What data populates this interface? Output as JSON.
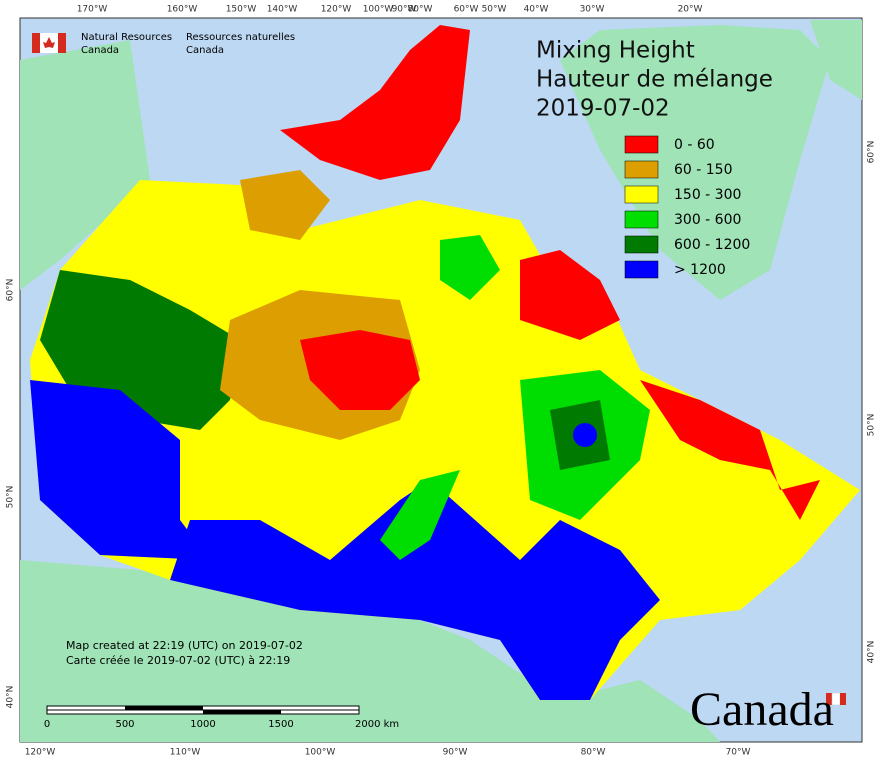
{
  "header": {
    "agency_en": [
      "Natural Resources",
      "Canada"
    ],
    "agency_fr": [
      "Ressources naturelles",
      "Canada"
    ]
  },
  "title": [
    "Mixing Height",
    "Hauteur de mélange",
    "2019-07-02"
  ],
  "legend": [
    {
      "label": "0 - 60",
      "color": "#ff0000"
    },
    {
      "label": "60 - 150",
      "color": "#dc9e00"
    },
    {
      "label": "150 - 300",
      "color": "#ffff00"
    },
    {
      "label": "300 - 600",
      "color": "#00dd00"
    },
    {
      "label": "600 - 1200",
      "color": "#007a00"
    },
    {
      "label": "> 1200",
      "color": "#0000ff"
    }
  ],
  "graticule": {
    "top": [
      "170°W",
      "160°W",
      "150°W",
      "140°W",
      "120°W",
      "100°W",
      "90°W",
      "80°W",
      "60°W",
      "50°W",
      "40°W",
      "30°W",
      "20°W"
    ],
    "bottom": [
      "120°W",
      "110°W",
      "100°W",
      "90°W",
      "80°W",
      "70°W"
    ],
    "left": [
      "60°N",
      "50°N",
      "40°N"
    ],
    "right": [
      "60°N",
      "50°N",
      "40°N"
    ]
  },
  "credits": [
    "Map created at 22:19 (UTC) on 2019-07-02",
    "Carte créée le 2019-07-02 (UTC) à 22:19"
  ],
  "scale_bar": [
    "0",
    "500",
    "1000",
    "1500",
    "2000  km"
  ],
  "wordmark": "Canada"
}
